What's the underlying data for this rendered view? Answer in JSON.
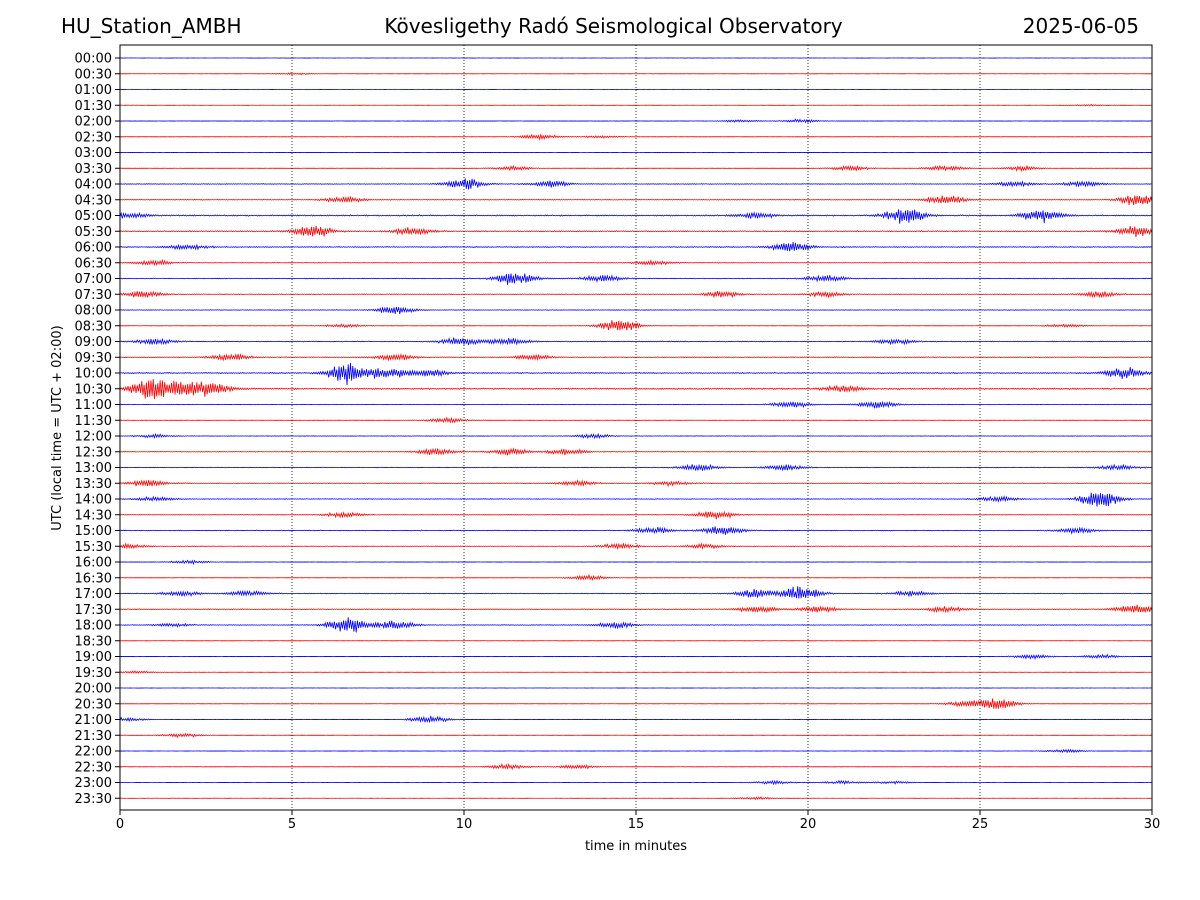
{
  "header": {
    "station": "HU_Station_AMBH",
    "title": "Kövesligethy Radó Seismological Observatory",
    "date": "2025-06-05"
  },
  "chart_data": {
    "type": "line",
    "title": "Kövesligethy Radó Seismological Observatory",
    "xlabel": "time in minutes",
    "ylabel": "UTC (local time = UTC + 02:00)",
    "xlim": [
      0,
      30
    ],
    "xticks": [
      "0",
      "5",
      "10",
      "15",
      "20",
      "25",
      "30"
    ],
    "grid": "vertical dotted at 5-minute intervals",
    "colors": {
      "even_rows": "#0000ff",
      "odd_rows": "#ff0000",
      "axis": "#000000"
    },
    "rows": [
      {
        "label": "00:00",
        "level": 0.05,
        "bursts": []
      },
      {
        "label": "00:30",
        "level": 0.06,
        "bursts": [
          [
            5.1,
            1.2
          ]
        ]
      },
      {
        "label": "01:00",
        "level": 0.05,
        "bursts": []
      },
      {
        "label": "01:30",
        "level": 0.05,
        "bursts": [
          [
            28.2,
            0.8
          ]
        ]
      },
      {
        "label": "02:00",
        "level": 0.08,
        "bursts": [
          [
            18.0,
            1.5
          ],
          [
            19.8,
            2.0
          ]
        ]
      },
      {
        "label": "02:30",
        "level": 0.1,
        "bursts": [
          [
            12.2,
            3.0
          ],
          [
            14.0,
            1.5
          ]
        ]
      },
      {
        "label": "03:00",
        "level": 0.08,
        "bursts": []
      },
      {
        "label": "03:30",
        "level": 0.08,
        "bursts": [
          [
            11.4,
            2.5
          ],
          [
            21.2,
            3.0
          ],
          [
            24.0,
            3.5
          ],
          [
            26.2,
            2.5
          ]
        ]
      },
      {
        "label": "04:00",
        "level": 0.28,
        "bursts": [
          [
            10.0,
            6.5
          ],
          [
            12.5,
            4.0
          ],
          [
            26.0,
            3.0
          ],
          [
            28.0,
            3.0
          ]
        ]
      },
      {
        "label": "04:30",
        "level": 0.3,
        "bursts": [
          [
            6.5,
            3.5
          ],
          [
            24.0,
            5.0
          ],
          [
            29.6,
            6.5
          ]
        ]
      },
      {
        "label": "05:00",
        "level": 0.5,
        "bursts": [
          [
            0.2,
            3.5
          ],
          [
            22.8,
            9.0
          ],
          [
            26.8,
            7.5
          ],
          [
            18.5,
            3.5
          ]
        ]
      },
      {
        "label": "05:30",
        "level": 0.45,
        "bursts": [
          [
            5.6,
            7.0
          ],
          [
            8.5,
            4.0
          ],
          [
            29.5,
            5.5
          ]
        ]
      },
      {
        "label": "06:00",
        "level": 0.4,
        "bursts": [
          [
            19.5,
            6.5
          ],
          [
            2.0,
            3.0
          ]
        ]
      },
      {
        "label": "06:30",
        "level": 0.2,
        "bursts": [
          [
            1.0,
            3.0
          ],
          [
            15.5,
            3.0
          ]
        ]
      },
      {
        "label": "07:00",
        "level": 0.3,
        "bursts": [
          [
            11.5,
            8.0
          ],
          [
            14.0,
            4.0
          ],
          [
            20.5,
            3.5
          ]
        ]
      },
      {
        "label": "07:30",
        "level": 0.25,
        "bursts": [
          [
            0.7,
            4.0
          ],
          [
            17.5,
            3.5
          ],
          [
            20.5,
            3.0
          ],
          [
            28.5,
            3.0
          ]
        ]
      },
      {
        "label": "08:00",
        "level": 0.2,
        "bursts": [
          [
            8.0,
            4.5
          ]
        ]
      },
      {
        "label": "08:30",
        "level": 0.12,
        "bursts": [
          [
            14.5,
            7.5
          ],
          [
            6.5,
            2.0
          ],
          [
            27.5,
            2.0
          ]
        ]
      },
      {
        "label": "09:00",
        "level": 0.35,
        "bursts": [
          [
            9.9,
            5.0
          ],
          [
            11.3,
            4.0
          ],
          [
            1.0,
            3.5
          ],
          [
            22.5,
            3.0
          ]
        ]
      },
      {
        "label": "09:30",
        "level": 0.3,
        "bursts": [
          [
            3.2,
            4.0
          ],
          [
            8.0,
            4.0
          ],
          [
            12.0,
            3.0
          ]
        ]
      },
      {
        "label": "10:00",
        "level": 0.45,
        "bursts": [
          [
            6.6,
            13.0
          ],
          [
            7.8,
            7.0
          ],
          [
            9.0,
            4.0
          ],
          [
            29.2,
            6.5
          ]
        ]
      },
      {
        "label": "10:30",
        "level": 0.55,
        "bursts": [
          [
            0.9,
            12.0
          ],
          [
            1.8,
            9.0
          ],
          [
            2.6,
            8.0
          ],
          [
            21.0,
            3.5
          ]
        ]
      },
      {
        "label": "11:00",
        "level": 0.2,
        "bursts": [
          [
            19.5,
            4.0
          ],
          [
            22.0,
            4.5
          ]
        ]
      },
      {
        "label": "11:30",
        "level": 0.12,
        "bursts": [
          [
            9.5,
            3.0
          ]
        ]
      },
      {
        "label": "12:00",
        "level": 0.15,
        "bursts": [
          [
            13.7,
            2.5
          ],
          [
            1.0,
            2.0
          ]
        ]
      },
      {
        "label": "12:30",
        "level": 0.25,
        "bursts": [
          [
            9.2,
            4.0
          ],
          [
            11.3,
            4.0
          ],
          [
            13.0,
            3.5
          ]
        ]
      },
      {
        "label": "13:00",
        "level": 0.25,
        "bursts": [
          [
            16.8,
            4.0
          ],
          [
            19.3,
            3.5
          ],
          [
            29.0,
            3.0
          ]
        ]
      },
      {
        "label": "13:30",
        "level": 0.25,
        "bursts": [
          [
            0.8,
            4.0
          ],
          [
            13.3,
            3.0
          ],
          [
            16.0,
            2.5
          ]
        ]
      },
      {
        "label": "14:00",
        "level": 0.25,
        "bursts": [
          [
            28.5,
            11.0
          ],
          [
            25.5,
            3.0
          ],
          [
            1.0,
            2.5
          ]
        ]
      },
      {
        "label": "14:30",
        "level": 0.2,
        "bursts": [
          [
            17.3,
            5.0
          ],
          [
            6.5,
            3.0
          ]
        ]
      },
      {
        "label": "15:00",
        "level": 0.3,
        "bursts": [
          [
            17.5,
            5.0
          ],
          [
            15.5,
            3.5
          ],
          [
            27.8,
            3.0
          ]
        ]
      },
      {
        "label": "15:30",
        "level": 0.2,
        "bursts": [
          [
            14.5,
            3.0
          ],
          [
            0.2,
            2.5
          ],
          [
            17.0,
            2.5
          ]
        ]
      },
      {
        "label": "16:00",
        "level": 0.08,
        "bursts": [
          [
            2.0,
            2.0
          ]
        ]
      },
      {
        "label": "16:30",
        "level": 0.1,
        "bursts": [
          [
            13.6,
            3.0
          ]
        ]
      },
      {
        "label": "17:00",
        "level": 0.3,
        "bursts": [
          [
            19.8,
            8.0
          ],
          [
            18.5,
            5.0
          ],
          [
            23.0,
            3.0
          ],
          [
            1.8,
            3.0
          ],
          [
            3.7,
            3.0
          ]
        ]
      },
      {
        "label": "17:30",
        "level": 0.3,
        "bursts": [
          [
            18.5,
            4.0
          ],
          [
            20.3,
            3.5
          ],
          [
            29.5,
            5.0
          ],
          [
            24.0,
            3.0
          ]
        ]
      },
      {
        "label": "18:00",
        "level": 0.25,
        "bursts": [
          [
            6.6,
            10.0
          ],
          [
            8.0,
            5.0
          ],
          [
            14.4,
            3.5
          ],
          [
            1.5,
            2.0
          ]
        ]
      },
      {
        "label": "18:30",
        "level": 0.06,
        "bursts": []
      },
      {
        "label": "19:00",
        "level": 0.08,
        "bursts": [
          [
            26.5,
            2.5
          ],
          [
            28.5,
            2.5
          ]
        ]
      },
      {
        "label": "19:30",
        "level": 0.06,
        "bursts": [
          [
            0.5,
            1.5
          ]
        ]
      },
      {
        "label": "20:00",
        "level": 0.05,
        "bursts": []
      },
      {
        "label": "20:30",
        "level": 0.08,
        "bursts": [
          [
            25.5,
            7.0
          ],
          [
            24.5,
            3.0
          ]
        ]
      },
      {
        "label": "21:00",
        "level": 0.1,
        "bursts": [
          [
            9.0,
            4.0
          ],
          [
            0.2,
            2.0
          ]
        ]
      },
      {
        "label": "21:30",
        "level": 0.06,
        "bursts": [
          [
            1.8,
            2.5
          ]
        ]
      },
      {
        "label": "22:00",
        "level": 0.06,
        "bursts": [
          [
            27.5,
            2.0
          ]
        ]
      },
      {
        "label": "22:30",
        "level": 0.08,
        "bursts": [
          [
            11.3,
            3.0
          ],
          [
            13.3,
            2.5
          ]
        ]
      },
      {
        "label": "23:00",
        "level": 0.06,
        "bursts": [
          [
            19.0,
            2.0
          ],
          [
            21.0,
            2.0
          ],
          [
            22.5,
            1.5
          ]
        ]
      },
      {
        "label": "23:30",
        "level": 0.05,
        "bursts": [
          [
            18.5,
            1.5
          ]
        ]
      }
    ]
  }
}
